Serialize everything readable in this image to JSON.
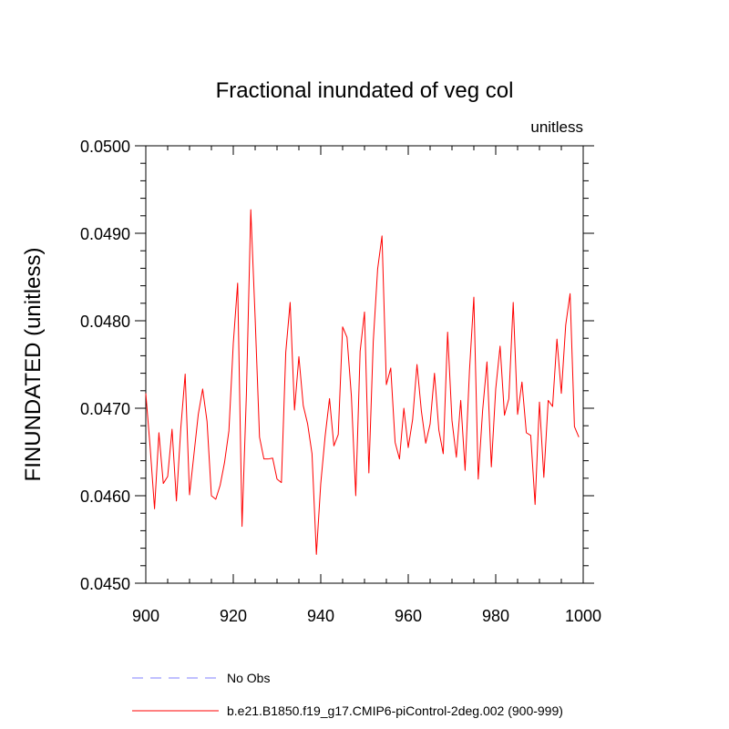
{
  "chart_data": {
    "type": "line",
    "title": "Fractional inundated of veg col",
    "units_label": "unitless",
    "ylabel": "FINUNDATED  (unitless)",
    "xlabel": "",
    "xlim": [
      900,
      1000
    ],
    "ylim": [
      0.045,
      0.05
    ],
    "x_ticks": [
      900,
      920,
      940,
      960,
      980,
      1000
    ],
    "x_tick_labels": [
      "900",
      "920",
      "940",
      "960",
      "980",
      "1000"
    ],
    "y_ticks": [
      0.045,
      0.046,
      0.047,
      0.048,
      0.049,
      0.05
    ],
    "y_tick_labels": [
      "0.0450",
      "0.0460",
      "0.0470",
      "0.0480",
      "0.0490",
      "0.0500"
    ],
    "legend": [
      {
        "label": "No Obs",
        "color": "#8080ff",
        "style": "dashed"
      },
      {
        "label": "b.e21.B1850.f19_g17.CMIP6-piControl-2deg.002 (900-999)",
        "color": "#ff0000",
        "style": "solid"
      }
    ],
    "series": [
      {
        "name": "b.e21.B1850.f19_g17.CMIP6-piControl-2deg.002 (900-999)",
        "color": "#ff0000",
        "x_start": 900,
        "x_step": 1,
        "values": [
          0.04717,
          0.04655,
          0.04585,
          0.04672,
          0.04614,
          0.04622,
          0.04676,
          0.04594,
          0.04677,
          0.04739,
          0.04601,
          0.04647,
          0.04693,
          0.04722,
          0.04685,
          0.046,
          0.04596,
          0.04612,
          0.04638,
          0.04674,
          0.04774,
          0.04843,
          0.04565,
          0.04716,
          0.04927,
          0.04803,
          0.04667,
          0.04642,
          0.04642,
          0.04643,
          0.04619,
          0.04615,
          0.04764,
          0.04821,
          0.04698,
          0.04759,
          0.04703,
          0.04682,
          0.04648,
          0.04533,
          0.04614,
          0.04668,
          0.04711,
          0.04657,
          0.0467,
          0.04793,
          0.04781,
          0.04714,
          0.046,
          0.04765,
          0.0481,
          0.04626,
          0.04776,
          0.04859,
          0.04897,
          0.04727,
          0.04746,
          0.04661,
          0.04642,
          0.047,
          0.04655,
          0.04687,
          0.0475,
          0.04697,
          0.0466,
          0.04682,
          0.0474,
          0.04675,
          0.04648,
          0.04787,
          0.04686,
          0.04644,
          0.04709,
          0.04629,
          0.04743,
          0.04827,
          0.04619,
          0.04697,
          0.04753,
          0.04633,
          0.04722,
          0.04771,
          0.04692,
          0.04711,
          0.04821,
          0.04693,
          0.0473,
          0.04672,
          0.04669,
          0.0459,
          0.04707,
          0.04621,
          0.04709,
          0.04702,
          0.04779,
          0.04717,
          0.04795,
          0.04831,
          0.04679,
          0.04667
        ]
      }
    ]
  }
}
